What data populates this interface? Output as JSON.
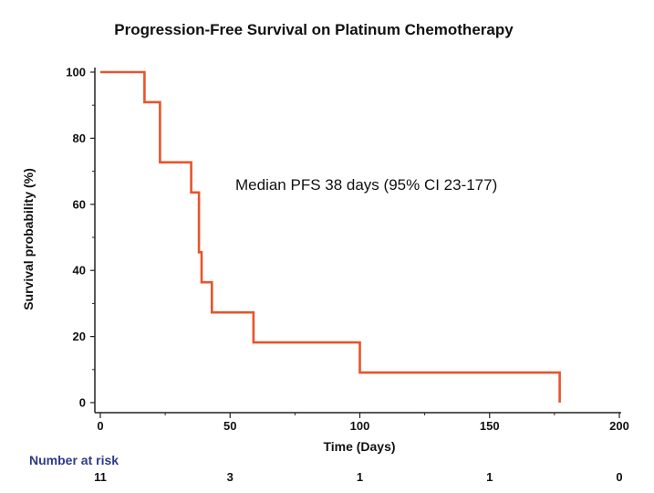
{
  "colors": {
    "curve": "#e8542a",
    "axis": "#222222",
    "risk_title": "#2b3a8c"
  },
  "chart_data": {
    "type": "line",
    "step": true,
    "title": "Progression-Free Survival on Platinum Chemotherapy",
    "xlabel": "Time (Days)",
    "ylabel": "Survival probability (%)",
    "xlim": [
      0,
      200
    ],
    "ylim": [
      0,
      100
    ],
    "x_ticks": [
      0,
      50,
      100,
      150,
      200
    ],
    "y_ticks": [
      0,
      20,
      40,
      60,
      80,
      100
    ],
    "grid": false,
    "annotation": "Median PFS 38 days (95% CI 23-177)",
    "series": [
      {
        "points": [
          [
            0,
            100
          ],
          [
            17,
            100
          ],
          [
            17,
            90.9
          ],
          [
            23,
            90.9
          ],
          [
            23,
            72.7
          ],
          [
            35,
            72.7
          ],
          [
            35,
            63.6
          ],
          [
            38,
            63.6
          ],
          [
            38,
            45.5
          ],
          [
            39,
            45.5
          ],
          [
            39,
            36.4
          ],
          [
            43,
            36.4
          ],
          [
            43,
            27.3
          ],
          [
            59,
            27.3
          ],
          [
            59,
            18.2
          ],
          [
            100,
            18.2
          ],
          [
            100,
            9.1
          ],
          [
            177,
            9.1
          ],
          [
            177,
            0
          ]
        ]
      }
    ],
    "risk_table": {
      "title": "Number at risk",
      "times": [
        0,
        50,
        100,
        150,
        200
      ],
      "counts": [
        "11",
        "3",
        "1",
        "1",
        "0"
      ]
    }
  }
}
